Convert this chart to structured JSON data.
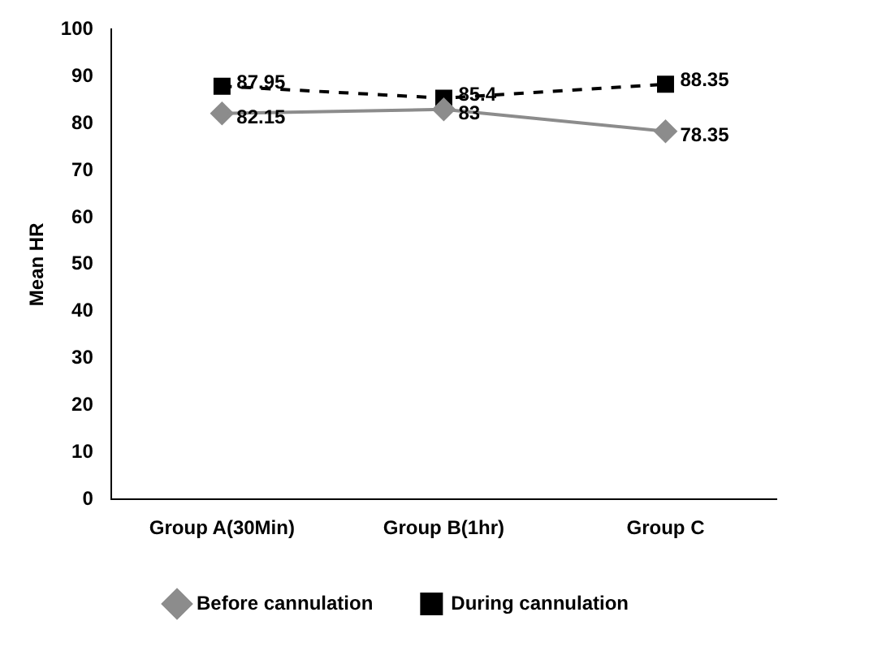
{
  "chart_data": {
    "type": "line",
    "ylabel": "Mean HR",
    "categories": [
      "Group A(30Min)",
      "Group B(1hr)",
      "Group C"
    ],
    "series": [
      {
        "name": "Before cannulation",
        "color": "#8c8c8c",
        "values": [
          82.15,
          83,
          78.35
        ],
        "marker": "diamond",
        "line_style": "solid"
      },
      {
        "name": "During cannulation",
        "color": "#000000",
        "values": [
          87.95,
          85.4,
          88.35
        ],
        "marker": "square",
        "line_style": "dashed"
      }
    ],
    "ylim": [
      0,
      100
    ],
    "yticks": [
      0,
      10,
      20,
      30,
      40,
      50,
      60,
      70,
      80,
      90,
      100
    ],
    "grid": false,
    "legend": "bottom",
    "data_labels": true
  }
}
